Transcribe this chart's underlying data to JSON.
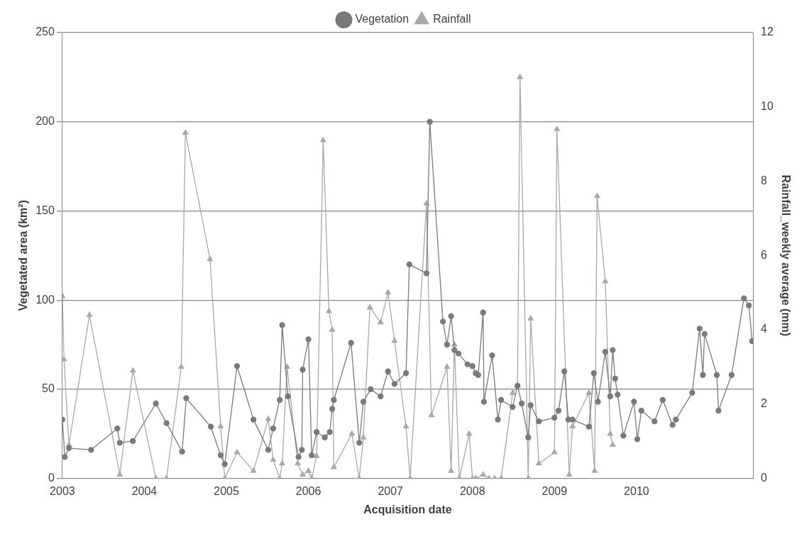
{
  "chart_data": {
    "type": "line",
    "xlabel": "Acquisition date",
    "ylabel": "Vegetated area (km²)",
    "y2label": "Rainfall_weekly average (mm)",
    "xlim": [
      2003,
      2011.42
    ],
    "xticks": [
      2003,
      2004,
      2005,
      2006,
      2007,
      2008,
      2009,
      2010
    ],
    "ylim": [
      0,
      250
    ],
    "yticks": [
      0,
      50,
      100,
      150,
      200,
      250
    ],
    "y2lim": [
      0,
      12
    ],
    "y2ticks": [
      0,
      2,
      4,
      6,
      8,
      10,
      12
    ],
    "grid": "y",
    "legend": "top",
    "line_style": "solid",
    "series": [
      {
        "name": "Vegetation",
        "color": "#7a7a7a",
        "marker": "circle",
        "x": [
          2003.0,
          2003.03,
          2003.08,
          2003.35,
          2003.67,
          2003.7,
          2003.86,
          2004.14,
          2004.27,
          2004.46,
          2004.51,
          2004.81,
          2004.93,
          2004.98,
          2005.13,
          2005.33,
          2005.51,
          2005.57,
          2005.65,
          2005.68,
          2005.75,
          2005.88,
          2005.92,
          2005.93,
          2006.0,
          2006.04,
          2006.1,
          2006.2,
          2006.26,
          2006.29,
          2006.31,
          2006.52,
          2006.62,
          2006.67,
          2006.76,
          2006.88,
          2006.97,
          2007.05,
          2007.19,
          2007.23,
          2007.44,
          2007.48,
          2007.64,
          2007.69,
          2007.74,
          2007.78,
          2007.83,
          2007.94,
          2008.0,
          2008.04,
          2008.07,
          2008.13,
          2008.14,
          2008.24,
          2008.31,
          2008.35,
          2008.49,
          2008.55,
          2008.6,
          2008.68,
          2008.71,
          2008.81,
          2009.0,
          2009.05,
          2009.12,
          2009.17,
          2009.22,
          2009.42,
          2009.48,
          2009.53,
          2009.62,
          2009.68,
          2009.71,
          2009.74,
          2009.77,
          2009.84,
          2009.97,
          2010.01,
          2010.06,
          2010.22,
          2010.32,
          2010.44,
          2010.48,
          2010.68,
          2010.77,
          2010.81,
          2010.83,
          2010.98,
          2011.0,
          2011.16,
          2011.31,
          2011.37,
          2011.41
        ],
        "values": [
          33,
          12,
          17,
          16,
          28,
          20,
          21,
          42,
          31,
          15,
          45,
          29,
          13,
          8,
          63,
          33,
          16,
          28,
          44,
          86,
          46,
          12,
          16,
          61,
          78,
          13,
          26,
          23,
          26,
          39,
          44,
          76,
          20,
          43,
          50,
          46,
          60,
          53,
          59,
          120,
          115,
          200,
          88,
          75,
          91,
          72,
          70,
          64,
          63,
          59,
          58,
          93,
          43,
          69,
          33,
          44,
          40,
          52,
          42,
          23,
          41,
          32,
          34,
          38,
          60,
          33,
          33,
          29,
          59,
          43,
          71,
          46,
          72,
          56,
          47,
          24,
          43,
          22,
          38,
          32,
          44,
          30,
          33,
          48,
          84,
          58,
          81,
          58,
          38,
          58,
          101,
          97,
          77
        ]
      },
      {
        "name": "Rainfall",
        "color": "#a8a8a8",
        "marker": "triangle",
        "axis": "y2",
        "x": [
          2003.0,
          2003.02,
          2003.08,
          2003.33,
          2003.7,
          2003.86,
          2004.14,
          2004.27,
          2004.45,
          2004.5,
          2004.8,
          2004.93,
          2004.98,
          2005.13,
          2005.33,
          2005.51,
          2005.57,
          2005.65,
          2005.68,
          2005.74,
          2005.87,
          2005.93,
          2006.0,
          2006.04,
          2006.1,
          2006.18,
          2006.25,
          2006.29,
          2006.31,
          2006.53,
          2006.62,
          2006.67,
          2006.75,
          2006.88,
          2006.97,
          2007.05,
          2007.19,
          2007.24,
          2007.44,
          2007.5,
          2007.69,
          2007.74,
          2007.78,
          2007.84,
          2007.96,
          2008.0,
          2008.04,
          2008.13,
          2008.2,
          2008.27,
          2008.35,
          2008.49,
          2008.55,
          2008.58,
          2008.68,
          2008.71,
          2008.81,
          2009.0,
          2009.03,
          2009.18,
          2009.22,
          2009.42,
          2009.49,
          2009.52,
          2009.62,
          2009.68,
          2009.71
        ],
        "values": [
          4.9,
          3.2,
          0.9,
          4.4,
          0.1,
          2.9,
          0,
          0,
          3,
          9.3,
          5.9,
          1.4,
          0,
          0.7,
          0.2,
          1.6,
          0.5,
          0,
          0.4,
          3,
          0.4,
          0.1,
          0.2,
          0,
          0.6,
          9.1,
          4.5,
          4,
          0.3,
          1.2,
          0,
          1.1,
          4.6,
          4.2,
          5,
          3.7,
          1.4,
          0,
          7.4,
          1.7,
          3,
          0.2,
          3.6,
          0,
          1.2,
          0,
          0,
          0.1,
          0,
          0,
          0,
          2.3,
          2.5,
          10.8,
          0,
          4.3,
          0.4,
          0.7,
          9.4,
          0.1,
          1.4,
          2.3,
          0.2,
          7.6,
          5.3,
          1.2,
          0.9
        ]
      }
    ]
  }
}
